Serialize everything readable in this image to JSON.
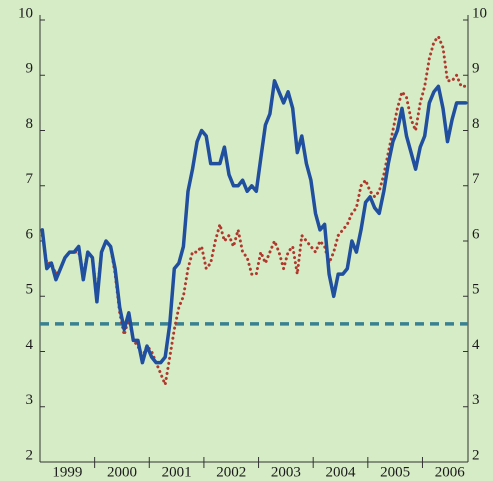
{
  "chart_data": {
    "type": "line",
    "categories": [
      null,
      null,
      null,
      null,
      null,
      null,
      "1999",
      null,
      null,
      null,
      null,
      null,
      null,
      null,
      null,
      null,
      null,
      null,
      "2000",
      null,
      null,
      null,
      null,
      null,
      null,
      null,
      null,
      null,
      null,
      null,
      "2001",
      null,
      null,
      null,
      null,
      null,
      null,
      null,
      null,
      null,
      null,
      null,
      "2002",
      null,
      null,
      null,
      null,
      null,
      null,
      null,
      null,
      null,
      null,
      null,
      "2003",
      null,
      null,
      null,
      null,
      null,
      null,
      null,
      null,
      null,
      null,
      null,
      "2004",
      null,
      null,
      null,
      null,
      null,
      null,
      null,
      null,
      null,
      null,
      null,
      "2005",
      null,
      null,
      null,
      null,
      null,
      null,
      null,
      null,
      null,
      null,
      null,
      "2006",
      null,
      null,
      null
    ],
    "series": [
      {
        "color": "#1f4f9e",
        "style": "solid",
        "values": [
          6.2,
          5.5,
          5.6,
          5.3,
          5.5,
          5.7,
          5.8,
          5.8,
          5.9,
          5.3,
          5.8,
          5.7,
          4.9,
          5.8,
          6.0,
          5.9,
          5.5,
          4.8,
          4.4,
          4.7,
          4.2,
          4.2,
          3.8,
          4.1,
          3.9,
          3.8,
          3.8,
          3.9,
          4.5,
          5.5,
          5.6,
          5.9,
          6.9,
          7.3,
          7.8,
          8.0,
          7.9,
          7.4,
          7.4,
          7.4,
          7.7,
          7.2,
          7.0,
          7.0,
          7.1,
          6.9,
          7.0,
          6.9,
          7.5,
          8.1,
          8.3,
          8.9,
          8.7,
          8.5,
          8.7,
          8.4,
          7.6,
          7.9,
          7.4,
          7.1,
          6.5,
          6.2,
          6.3,
          5.4,
          5.0,
          5.4,
          5.4,
          5.5,
          6.0,
          5.8,
          6.2,
          6.7,
          6.8,
          6.6,
          6.5,
          6.9,
          7.4,
          7.8,
          8.0,
          8.4,
          7.9,
          7.6,
          7.3,
          7.7,
          7.9,
          8.5,
          8.7,
          8.8,
          8.4,
          7.8,
          8.2,
          8.5,
          8.5,
          8.5
        ]
      },
      {
        "color": "#b0392e",
        "style": "dotted",
        "values": [
          6.1,
          5.6,
          5.6,
          5.4,
          5.5,
          5.7,
          5.8,
          5.8,
          5.8,
          5.4,
          5.8,
          5.7,
          5.0,
          5.8,
          6.0,
          5.9,
          5.4,
          4.7,
          4.3,
          4.6,
          4.2,
          4.1,
          3.9,
          4.1,
          4.0,
          3.8,
          3.6,
          3.4,
          3.9,
          4.4,
          4.8,
          5.0,
          5.5,
          5.8,
          5.8,
          5.9,
          5.5,
          5.6,
          6.0,
          6.3,
          6.0,
          6.1,
          5.9,
          6.2,
          5.8,
          5.7,
          5.4,
          5.4,
          5.8,
          5.6,
          5.8,
          6.0,
          5.8,
          5.5,
          5.8,
          5.9,
          5.4,
          6.1,
          6.0,
          5.9,
          5.8,
          6.0,
          5.9,
          5.6,
          5.8,
          6.1,
          6.2,
          6.3,
          6.5,
          6.6,
          7.0,
          7.1,
          6.9,
          6.8,
          6.9,
          7.2,
          7.6,
          8.0,
          8.4,
          8.7,
          8.6,
          8.2,
          8.0,
          8.5,
          8.8,
          9.3,
          9.6,
          9.7,
          9.5,
          8.9,
          8.9,
          9.0,
          8.8,
          8.8
        ]
      }
    ],
    "reference_line": {
      "value": 4.5,
      "color": "#3b8090"
    },
    "ylim": [
      2,
      10
    ],
    "yticks": [
      2,
      3,
      4,
      5,
      6,
      7,
      8,
      9,
      10
    ],
    "y2lim": [
      2,
      10
    ],
    "y2ticks": [
      2,
      3,
      4,
      5,
      6,
      7,
      8,
      9,
      10
    ]
  }
}
